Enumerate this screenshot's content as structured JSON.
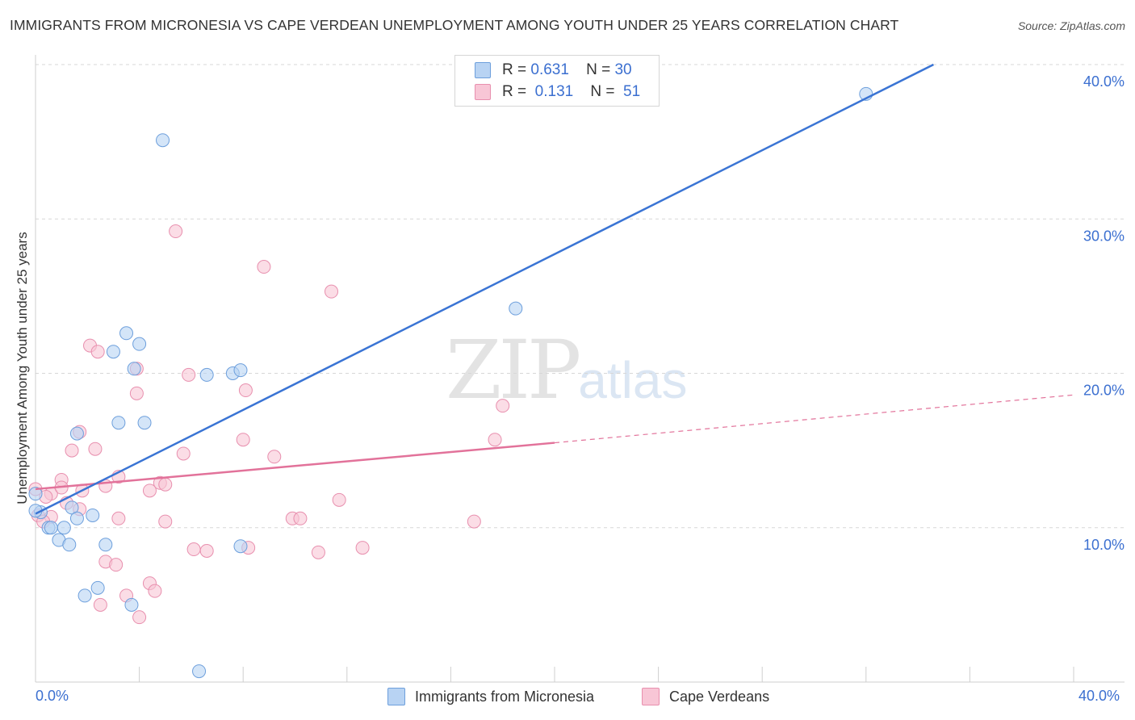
{
  "header": {
    "title": "IMMIGRANTS FROM MICRONESIA VS CAPE VERDEAN UNEMPLOYMENT AMONG YOUTH UNDER 25 YEARS CORRELATION CHART",
    "source": "Source: ZipAtlas.com"
  },
  "watermark": {
    "zip": "ZIP",
    "atlas": "atlas"
  },
  "legend": {
    "r_label": "R =",
    "n_label": "N =",
    "series": [
      {
        "r": "0.631",
        "n": "30"
      },
      {
        "r": "0.131",
        "n": "51"
      }
    ]
  },
  "colors": {
    "blue_fill": "#b8d3f3",
    "blue_stroke": "#6d9fdc",
    "blue_line": "#3a74d4",
    "pink_fill": "#f8c6d6",
    "pink_stroke": "#e88fae",
    "pink_line": "#e2729a",
    "grid": "#d7d7d7",
    "tick_text": "#3b6fd0"
  },
  "chart_data": {
    "type": "scatter",
    "title": "IMMIGRANTS FROM MICRONESIA VS CAPE VERDEAN UNEMPLOYMENT AMONG YOUTH UNDER 25 YEARS CORRELATION CHART",
    "xlabel": "",
    "ylabel": "Unemployment Among Youth under 25 years",
    "xlim": [
      0,
      40
    ],
    "ylim": [
      0,
      40
    ],
    "x_tick_labels": [
      "0.0%",
      "40.0%"
    ],
    "y_ticks": [
      10,
      20,
      30,
      40
    ],
    "y_tick_labels": [
      "10.0%",
      "20.0%",
      "30.0%",
      "40.0%"
    ],
    "series": [
      {
        "name": "Immigrants from Micronesia",
        "color": "blue",
        "trend": {
          "x0": 0,
          "y0": 10.9,
          "x1": 34.6,
          "y1": 40.0,
          "dashed_to": 34.6
        },
        "points": [
          [
            4.9,
            35.1
          ],
          [
            32.0,
            38.1
          ],
          [
            18.5,
            24.2
          ],
          [
            3.5,
            22.6
          ],
          [
            3.0,
            21.4
          ],
          [
            4.0,
            21.9
          ],
          [
            3.8,
            20.3
          ],
          [
            6.6,
            19.9
          ],
          [
            7.6,
            20.0
          ],
          [
            7.9,
            20.2
          ],
          [
            1.6,
            16.1
          ],
          [
            3.2,
            16.8
          ],
          [
            4.2,
            16.8
          ],
          [
            0.0,
            12.2
          ],
          [
            0.2,
            11.0
          ],
          [
            1.4,
            11.3
          ],
          [
            2.2,
            10.8
          ],
          [
            0.5,
            10.0
          ],
          [
            0.6,
            10.0
          ],
          [
            1.1,
            10.0
          ],
          [
            1.6,
            10.6
          ],
          [
            0.9,
            9.2
          ],
          [
            1.3,
            8.9
          ],
          [
            2.7,
            8.9
          ],
          [
            7.9,
            8.8
          ],
          [
            2.4,
            6.1
          ],
          [
            1.9,
            5.6
          ],
          [
            3.7,
            5.0
          ],
          [
            6.3,
            0.7
          ],
          [
            0.0,
            11.1
          ]
        ]
      },
      {
        "name": "Cape Verdeans",
        "color": "pink",
        "trend": {
          "x0": 0,
          "y0": 12.5,
          "x1": 20.0,
          "y1": 15.5,
          "dashed_to": 40.0,
          "dashed_y1": 18.6
        },
        "points": [
          [
            5.4,
            29.2
          ],
          [
            8.8,
            26.9
          ],
          [
            11.4,
            25.3
          ],
          [
            2.1,
            21.8
          ],
          [
            2.4,
            21.4
          ],
          [
            3.9,
            20.3
          ],
          [
            5.9,
            19.9
          ],
          [
            8.1,
            18.9
          ],
          [
            3.9,
            18.7
          ],
          [
            18.0,
            17.9
          ],
          [
            1.7,
            16.2
          ],
          [
            8.0,
            15.7
          ],
          [
            17.7,
            15.7
          ],
          [
            1.4,
            15.0
          ],
          [
            2.3,
            15.1
          ],
          [
            5.7,
            14.8
          ],
          [
            9.2,
            14.6
          ],
          [
            3.2,
            13.3
          ],
          [
            1.0,
            13.1
          ],
          [
            0.0,
            12.5
          ],
          [
            0.6,
            12.2
          ],
          [
            1.0,
            12.6
          ],
          [
            2.7,
            12.7
          ],
          [
            4.8,
            12.9
          ],
          [
            5.0,
            12.8
          ],
          [
            4.4,
            12.4
          ],
          [
            1.8,
            12.4
          ],
          [
            0.4,
            12.0
          ],
          [
            1.2,
            11.6
          ],
          [
            1.7,
            11.2
          ],
          [
            11.7,
            11.8
          ],
          [
            0.1,
            10.8
          ],
          [
            0.6,
            10.7
          ],
          [
            3.2,
            10.6
          ],
          [
            9.9,
            10.6
          ],
          [
            10.2,
            10.6
          ],
          [
            5.0,
            10.4
          ],
          [
            16.9,
            10.4
          ],
          [
            6.1,
            8.6
          ],
          [
            6.6,
            8.5
          ],
          [
            8.2,
            8.7
          ],
          [
            10.9,
            8.4
          ],
          [
            12.6,
            8.7
          ],
          [
            2.7,
            7.8
          ],
          [
            3.1,
            7.6
          ],
          [
            4.4,
            6.4
          ],
          [
            4.6,
            5.9
          ],
          [
            3.5,
            5.6
          ],
          [
            2.5,
            5.0
          ],
          [
            4.0,
            4.2
          ],
          [
            0.3,
            10.4
          ]
        ]
      }
    ],
    "legend_entries": [
      "Immigrants from Micronesia",
      "Cape Verdeans"
    ]
  }
}
